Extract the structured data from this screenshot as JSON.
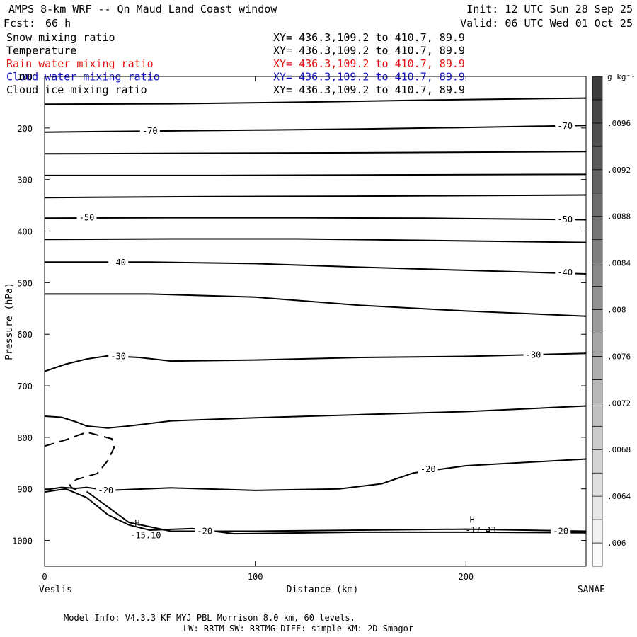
{
  "header": {
    "title": "AMPS 8-km WRF -- Qn Maud Land Coast window",
    "forecast_label": "Fcst:",
    "forecast_value": "66 h",
    "init": "Init: 12 UTC Sun 28 Sep 25",
    "valid": "Valid: 06 UTC Wed 01 Oct 25"
  },
  "fields": [
    {
      "name": "Snow mixing ratio",
      "xy": "XY= 436.3,109.2 to 410.7, 89.9",
      "color": "#000000"
    },
    {
      "name": "Temperature",
      "xy": "XY= 436.3,109.2 to 410.7, 89.9",
      "color": "#000000"
    },
    {
      "name": "Rain water mixing ratio",
      "xy": "XY= 436.3,109.2 to 410.7, 89.9",
      "color": "#e01010"
    },
    {
      "name": "Cloud water mixing ratio",
      "xy": "XY= 436.3,109.2 to 410.7, 89.9",
      "color": "#1010c0"
    },
    {
      "name": "Cloud ice mixing ratio",
      "xy": "XY= 436.3,109.2 to 410.7, 89.9",
      "color": "#000000"
    }
  ],
  "footer": {
    "line1": "Model Info: V4.3.3   KF      MYJ PBL  Morrison             8.0 km,  60 levels,",
    "line2": "LW: RRTM SW: RRTMG   DIFF: simple KM: 2D Smagor"
  },
  "chart_data": {
    "type": "line",
    "subtype": "vertical cross-section contour",
    "xlabel": "Distance (km)",
    "ylabel": "Pressure (hPa)",
    "xlim": [
      0,
      257
    ],
    "ylim": [
      1050,
      100
    ],
    "x_ticks": [
      0,
      100,
      200
    ],
    "y_ticks": [
      100,
      200,
      300,
      400,
      500,
      600,
      700,
      800,
      900,
      1000
    ],
    "left_endpoint": "Veslis",
    "right_endpoint": "SANAE",
    "colorbar": {
      "unit": "g kg⁻¹",
      "labels": [
        ".006",
        ".0064",
        ".0068",
        ".0072",
        ".0076",
        ".008",
        ".0084",
        ".0088",
        ".0092",
        ".0096"
      ],
      "levels": [
        0.0058,
        0.006,
        0.0062,
        0.0064,
        0.0066,
        0.0068,
        0.007,
        0.0072,
        0.0074,
        0.0076,
        0.0078,
        0.008,
        0.0082,
        0.0084,
        0.0086,
        0.0088,
        0.009,
        0.0092,
        0.0094,
        0.0096,
        0.0098,
        0.01
      ]
    },
    "isotherms": [
      {
        "label": "",
        "dashed": false,
        "points": [
          [
            0,
            154
          ],
          [
            60,
            153
          ],
          [
            120,
            150
          ],
          [
            180,
            146
          ],
          [
            257,
            142
          ]
        ]
      },
      {
        "label": "-70",
        "dashed": false,
        "points": [
          [
            0,
            208
          ],
          [
            50,
            206
          ],
          [
            100,
            204
          ],
          [
            150,
            202
          ],
          [
            200,
            199
          ],
          [
            257,
            195
          ]
        ]
      },
      {
        "label": "",
        "dashed": false,
        "points": [
          [
            0,
            250
          ],
          [
            80,
            249
          ],
          [
            160,
            248
          ],
          [
            257,
            246
          ]
        ]
      },
      {
        "label": "",
        "dashed": false,
        "points": [
          [
            0,
            292
          ],
          [
            80,
            292
          ],
          [
            160,
            291
          ],
          [
            257,
            290
          ]
        ]
      },
      {
        "label": "",
        "dashed": false,
        "points": [
          [
            0,
            335
          ],
          [
            80,
            333
          ],
          [
            160,
            332
          ],
          [
            257,
            330
          ]
        ]
      },
      {
        "label": "-50",
        "dashed": false,
        "points": [
          [
            0,
            375
          ],
          [
            60,
            374
          ],
          [
            120,
            374
          ],
          [
            180,
            375
          ],
          [
            230,
            377
          ],
          [
            257,
            378
          ]
        ]
      },
      {
        "label": "",
        "dashed": false,
        "points": [
          [
            0,
            416
          ],
          [
            60,
            415
          ],
          [
            120,
            415
          ],
          [
            180,
            418
          ],
          [
            257,
            422
          ]
        ]
      },
      {
        "label": "-40",
        "dashed": false,
        "points": [
          [
            0,
            460
          ],
          [
            50,
            460
          ],
          [
            100,
            463
          ],
          [
            150,
            470
          ],
          [
            200,
            476
          ],
          [
            257,
            483
          ]
        ]
      },
      {
        "label": "",
        "dashed": false,
        "points": [
          [
            0,
            522
          ],
          [
            50,
            522
          ],
          [
            100,
            528
          ],
          [
            150,
            544
          ],
          [
            200,
            555
          ],
          [
            257,
            565
          ]
        ]
      },
      {
        "label": "-30",
        "dashed": false,
        "points": [
          [
            0,
            672
          ],
          [
            10,
            658
          ],
          [
            20,
            648
          ],
          [
            30,
            642
          ],
          [
            45,
            645
          ],
          [
            60,
            652
          ],
          [
            100,
            650
          ],
          [
            150,
            645
          ],
          [
            200,
            643
          ],
          [
            257,
            637
          ]
        ]
      },
      {
        "label": "",
        "dashed": false,
        "points": [
          [
            0,
            759
          ],
          [
            8,
            761
          ],
          [
            15,
            770
          ],
          [
            20,
            778
          ],
          [
            30,
            782
          ],
          [
            40,
            778
          ],
          [
            60,
            768
          ],
          [
            100,
            762
          ],
          [
            150,
            756
          ],
          [
            200,
            750
          ],
          [
            257,
            739
          ]
        ]
      },
      {
        "label": "",
        "dashed": true,
        "points": [
          [
            0,
            817
          ],
          [
            10,
            805
          ],
          [
            20,
            790
          ],
          [
            32,
            803
          ],
          [
            33,
            820
          ],
          [
            30,
            845
          ],
          [
            25,
            870
          ],
          [
            15,
            882
          ],
          [
            12,
            893
          ],
          [
            13,
            898
          ],
          [
            15,
            902
          ]
        ]
      },
      {
        "label": "-20",
        "dashed": false,
        "points": [
          [
            0,
            902
          ],
          [
            8,
            897
          ],
          [
            15,
            899
          ],
          [
            20,
            897
          ],
          [
            30,
            903
          ],
          [
            60,
            898
          ],
          [
            100,
            903
          ],
          [
            140,
            900
          ],
          [
            160,
            890
          ],
          [
            175,
            869
          ],
          [
            200,
            855
          ],
          [
            257,
            842
          ]
        ]
      },
      {
        "label": "",
        "dashed": false,
        "points": [
          [
            0,
            906
          ],
          [
            10,
            900
          ],
          [
            20,
            917
          ],
          [
            30,
            950
          ],
          [
            40,
            970
          ],
          [
            50,
            980
          ],
          [
            70,
            977
          ],
          [
            90,
            987
          ],
          [
            150,
            984
          ],
          [
            200,
            984
          ],
          [
            257,
            985
          ]
        ]
      },
      {
        "label": "-20",
        "dashed": false,
        "points": [
          [
            20,
            905
          ],
          [
            30,
            935
          ],
          [
            40,
            965
          ],
          [
            60,
            982
          ],
          [
            100,
            982
          ],
          [
            150,
            980
          ],
          [
            200,
            978
          ],
          [
            257,
            982
          ]
        ]
      }
    ],
    "annotations": [
      {
        "text": "H",
        "x": 44,
        "y": 966
      },
      {
        "text": "-15.10",
        "x": 48,
        "y": 990
      },
      {
        "text": "H",
        "x": 203,
        "y": 960
      },
      {
        "text": "-17.43",
        "x": 207,
        "y": 980
      }
    ],
    "isotherm_labels": [
      {
        "text": "-70",
        "x": 50,
        "y": 206
      },
      {
        "text": "-70",
        "x": 247,
        "y": 196
      },
      {
        "text": "-50",
        "x": 20,
        "y": 374
      },
      {
        "text": "-50",
        "x": 247,
        "y": 377
      },
      {
        "text": "-40",
        "x": 35,
        "y": 461
      },
      {
        "text": "-40",
        "x": 247,
        "y": 480
      },
      {
        "text": "-30",
        "x": 35,
        "y": 643
      },
      {
        "text": "-30",
        "x": 232,
        "y": 640
      },
      {
        "text": "-20",
        "x": 29,
        "y": 903
      },
      {
        "text": "-20",
        "x": 182,
        "y": 862
      },
      {
        "text": "-20",
        "x": 76,
        "y": 982
      },
      {
        "text": "-20",
        "x": 245,
        "y": 982
      }
    ]
  }
}
